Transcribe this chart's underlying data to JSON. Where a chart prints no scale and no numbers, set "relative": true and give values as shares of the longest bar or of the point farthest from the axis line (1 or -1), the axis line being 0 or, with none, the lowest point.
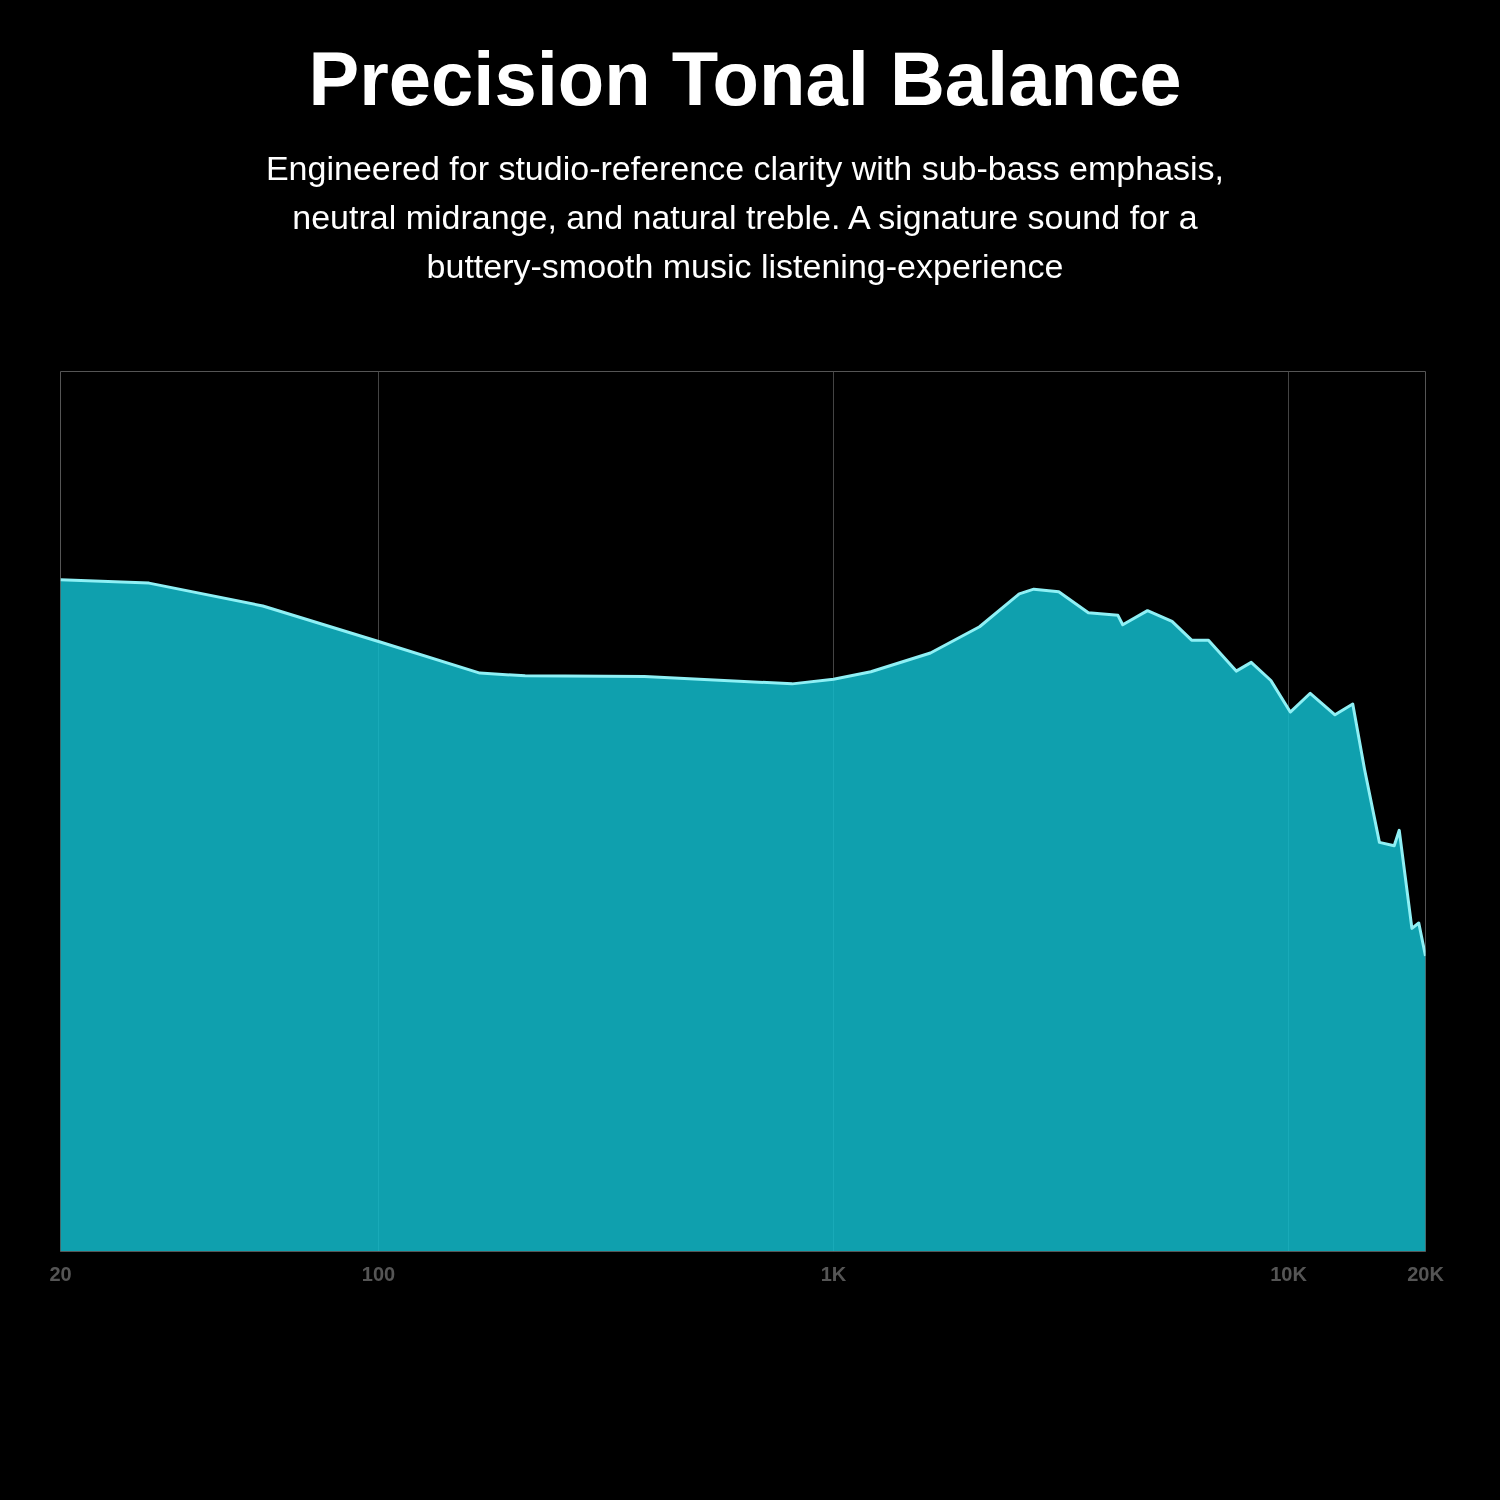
{
  "chart_data": {
    "type": "area",
    "title": "Precision Tonal Balance",
    "subtitle": "Engineered for studio-reference clarity with sub-bass emphasis,\nneutral midrange, and natural treble. A signature sound for a\nbuttery-smooth music listening-experience",
    "relative": true,
    "log": "x",
    "grid": "x",
    "xlim": [
      20,
      20000
    ],
    "xticks": [
      20,
      100,
      {
        "value": 1000,
        "label": "1K"
      },
      {
        "value": 10000,
        "label": "10K"
      },
      {
        "value": 20000,
        "label": "20K"
      }
    ],
    "series": [
      {
        "color": "#12bccd",
        "x": [
          20,
          31.3,
          55.7,
          100,
          167,
          210,
          384,
          811,
          1000,
          1208,
          1633,
          2094,
          2560,
          2755,
          3126,
          3631,
          4217,
          4321,
          4898,
          5546,
          6124,
          6668,
          7674,
          8279,
          9147,
          10090,
          11160,
          12650,
          13840,
          14690,
          15840,
          17070,
          17510,
          18670,
          19330,
          20000
        ],
        "values": [
          1.0,
          0.995,
          0.961,
          0.908,
          0.861,
          0.857,
          0.856,
          0.845,
          0.852,
          0.863,
          0.891,
          0.93,
          0.979,
          0.986,
          0.982,
          0.951,
          0.947,
          0.933,
          0.954,
          0.938,
          0.91,
          0.91,
          0.864,
          0.877,
          0.85,
          0.803,
          0.831,
          0.799,
          0.815,
          0.718,
          0.609,
          0.604,
          0.627,
          0.481,
          0.489,
          0.44
        ]
      }
    ]
  }
}
